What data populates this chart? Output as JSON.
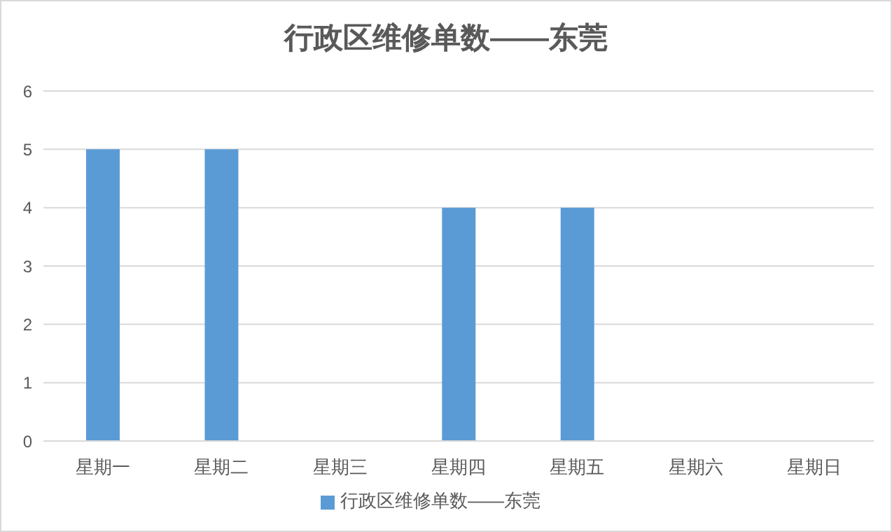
{
  "chart_data": {
    "type": "bar",
    "title": "行政区维修单数——东莞",
    "categories": [
      "星期一",
      "星期二",
      "星期三",
      "星期四",
      "星期五",
      "星期六",
      "星期日"
    ],
    "series": [
      {
        "name": "行政区维修单数——东莞",
        "color": "#5b9bd5",
        "values": [
          5,
          5,
          0,
          4,
          4,
          0,
          0
        ]
      }
    ],
    "ylim": [
      0,
      6
    ],
    "yticks": [
      0,
      1,
      2,
      3,
      4,
      5,
      6
    ],
    "grid": "y",
    "legend": "bottom"
  }
}
